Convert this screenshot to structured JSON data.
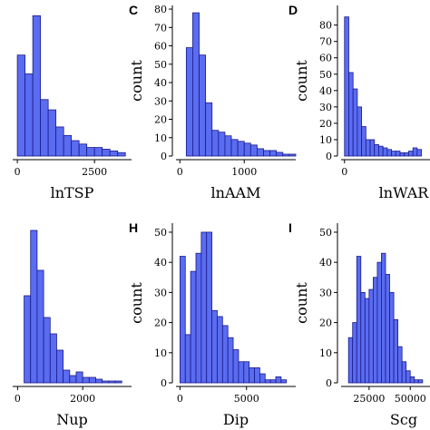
{
  "colors": {
    "bar_fill": "#5a6cf0",
    "bar_edge": "#1a1a8c"
  },
  "chart_data": [
    {
      "id": "p1",
      "letter": "",
      "type": "bar",
      "xlabel": "lnTSP",
      "ylabel": "",
      "xlim": [
        -150,
        3700
      ],
      "ylim": [
        0,
        88
      ],
      "xticks": [
        0,
        2500
      ],
      "yticks": [],
      "bin_width": 250,
      "bins_x": [
        0,
        250,
        500,
        750,
        1000,
        1250,
        1500,
        1750,
        2000,
        2250,
        2500,
        2750,
        3000,
        3250
      ],
      "values": [
        59,
        48,
        82,
        33,
        27,
        17,
        12,
        9,
        7,
        5,
        5,
        4,
        3,
        2
      ]
    },
    {
      "id": "C",
      "letter": "C",
      "type": "bar",
      "xlabel": "lnAAM",
      "ylabel": "count",
      "xlim": [
        -60,
        1800
      ],
      "ylim": [
        0,
        82
      ],
      "xticks": [
        0,
        1000
      ],
      "yticks": [
        0,
        10,
        20,
        30,
        40,
        50,
        60,
        70,
        80
      ],
      "bin_width": 100,
      "bins_x": [
        100,
        200,
        300,
        400,
        500,
        600,
        700,
        800,
        900,
        1000,
        1100,
        1200,
        1300,
        1400,
        1500,
        1600,
        1700
      ],
      "values": [
        59,
        78,
        55,
        29,
        14,
        13,
        11,
        9,
        8,
        7,
        6,
        4,
        3,
        3,
        2,
        1,
        1
      ]
    },
    {
      "id": "D",
      "letter": "D",
      "type": "bar",
      "xlabel": "lnWAR",
      "ylabel": "count",
      "xlim": [
        -40,
        1000
      ],
      "ylim": [
        0,
        92
      ],
      "xticks": [
        0
      ],
      "yticks": [
        0,
        10,
        20,
        30,
        40,
        50,
        60,
        70,
        80
      ],
      "bin_width": 50,
      "bins_x": [
        0,
        50,
        100,
        150,
        200,
        250,
        300,
        350,
        400,
        450,
        500,
        550,
        600,
        650,
        700,
        750,
        800,
        850
      ],
      "values": [
        85,
        51,
        41,
        30,
        18,
        10,
        10,
        7,
        6,
        5,
        4,
        3,
        3,
        2,
        2,
        3,
        5,
        4
      ]
    },
    {
      "id": "p4",
      "letter": "",
      "type": "bar",
      "xlabel": "Nup",
      "ylabel": "",
      "xlim": [
        -150,
        3500
      ],
      "ylim": [
        0,
        88
      ],
      "xticks": [
        0,
        2000
      ],
      "yticks": [],
      "bin_width": 200,
      "bins_x": [
        200,
        400,
        600,
        800,
        1000,
        1200,
        1400,
        1600,
        1800,
        2000,
        2200,
        2400,
        2600,
        2800,
        3000
      ],
      "values": [
        48,
        84,
        62,
        36,
        27,
        18,
        7,
        4,
        6,
        3,
        3,
        2,
        1,
        1,
        1
      ]
    },
    {
      "id": "H",
      "letter": "H",
      "type": "bar",
      "xlabel": "Dip",
      "ylabel": "count",
      "xlim": [
        -300,
        8700
      ],
      "ylim": [
        0,
        53
      ],
      "xticks": [
        0,
        5000
      ],
      "yticks": [
        0,
        10,
        20,
        30,
        40,
        50
      ],
      "bin_width": 400,
      "bins_x": [
        0,
        400,
        800,
        1200,
        1600,
        2000,
        2400,
        2800,
        3200,
        3600,
        4000,
        4400,
        4800,
        5200,
        5600,
        6000,
        6400,
        6800,
        7200,
        7600
      ],
      "values": [
        42,
        16,
        37,
        43,
        50,
        50,
        24,
        22,
        19,
        15,
        11,
        7,
        7,
        5,
        5,
        3,
        1,
        1,
        2,
        1
      ]
    },
    {
      "id": "I",
      "letter": "I",
      "type": "bar",
      "xlabel": "Scg",
      "ylabel": "count",
      "xlim": [
        8000,
        62000
      ],
      "ylim": [
        0,
        53
      ],
      "xticks": [
        25000,
        50000
      ],
      "yticks": [
        0,
        10,
        20,
        30,
        40,
        50
      ],
      "bin_width": 2500,
      "bins_x": [
        12500,
        15000,
        17500,
        20000,
        22500,
        25000,
        27500,
        30000,
        32500,
        35000,
        37500,
        40000,
        42500,
        45000,
        47500,
        50000,
        52500,
        55000
      ],
      "values": [
        15,
        20,
        42,
        30,
        28,
        31,
        35,
        40,
        43,
        36,
        30,
        21,
        12,
        7,
        4,
        2,
        1,
        1
      ]
    }
  ]
}
